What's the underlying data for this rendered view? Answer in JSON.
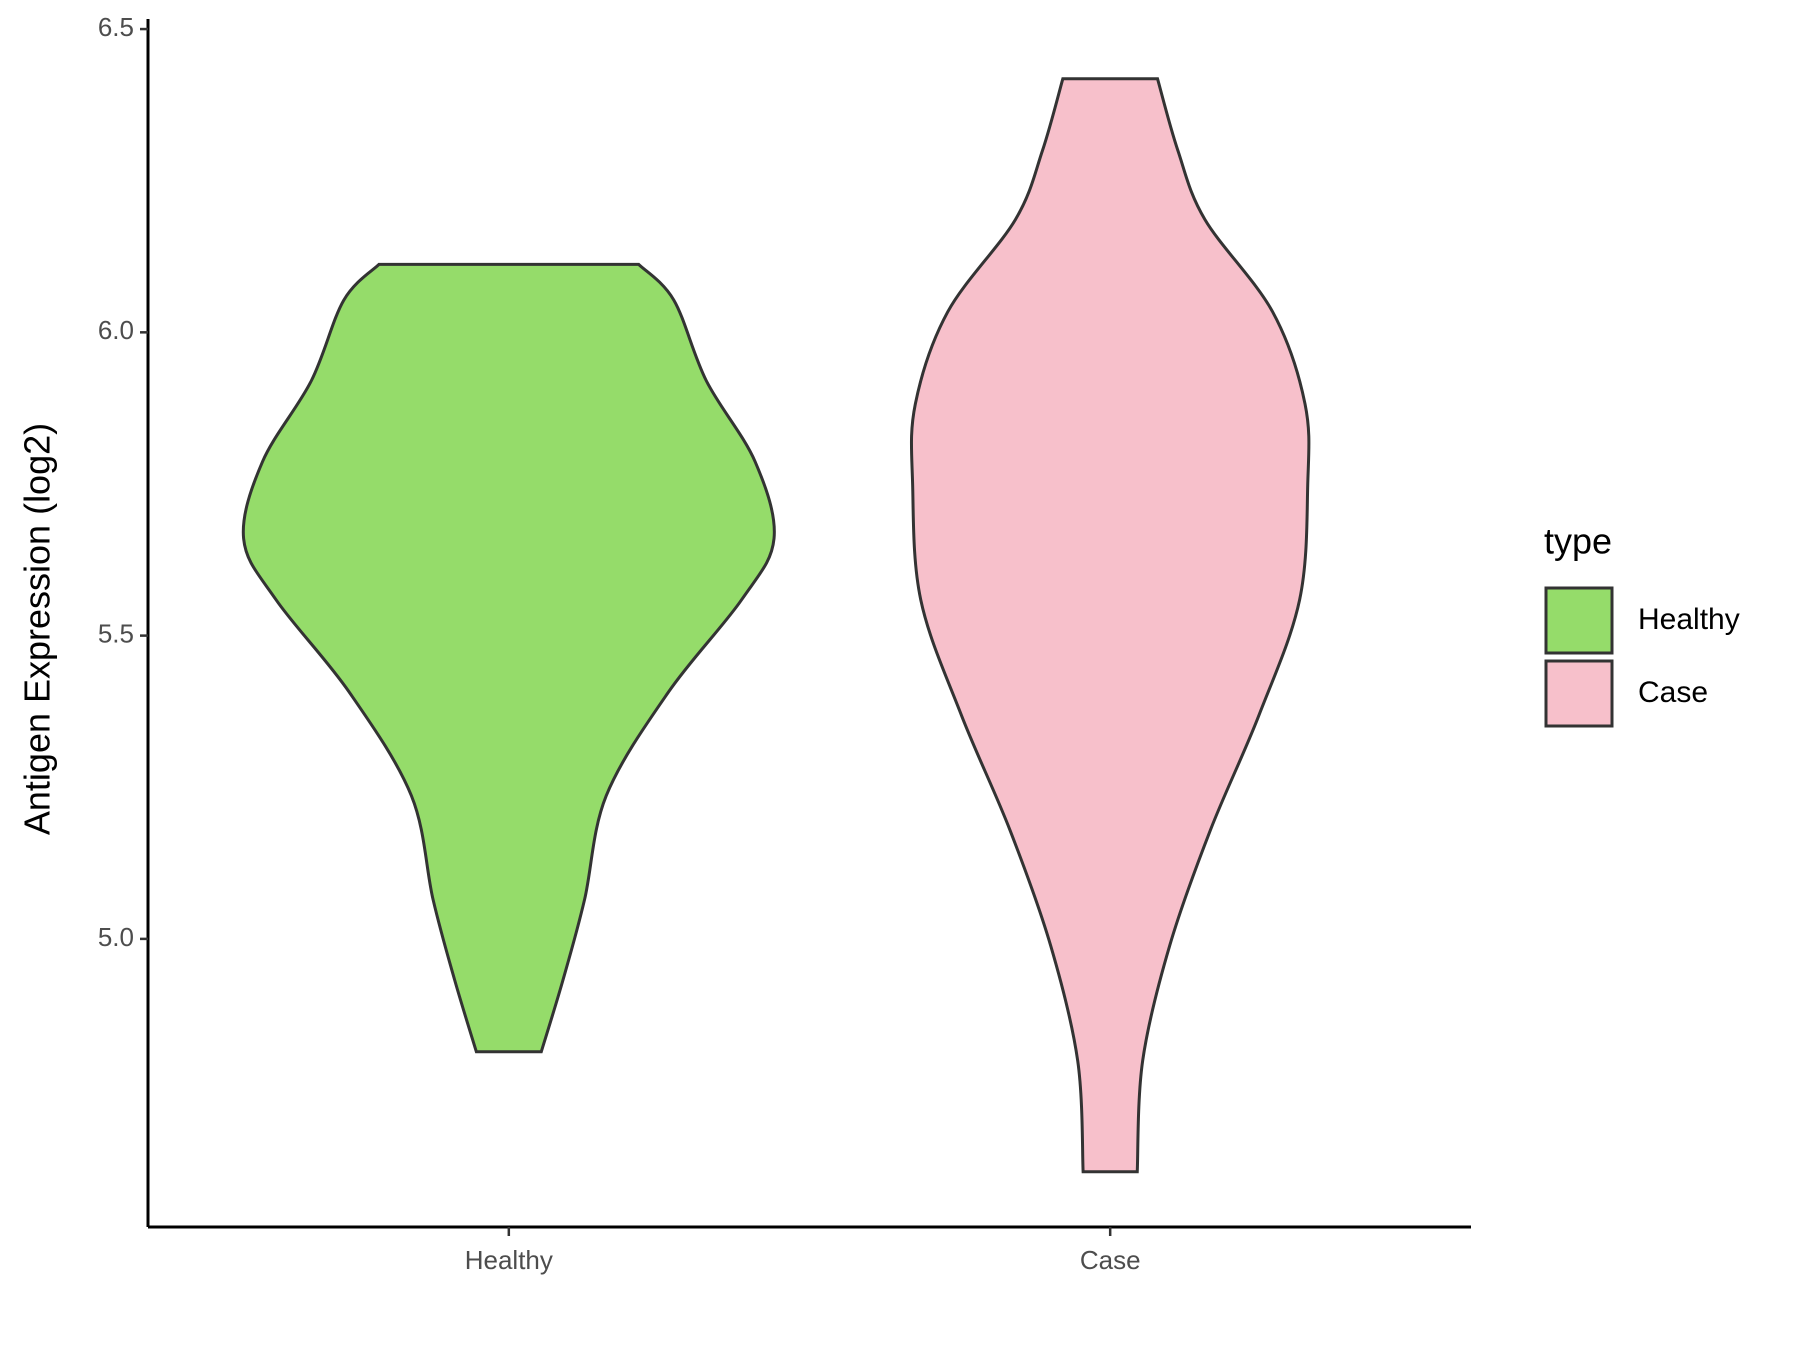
{
  "chart_data": {
    "type": "violin",
    "y_label": "Antigen Expression (log2)",
    "categories": [
      "Healthy",
      "Case"
    ],
    "legend_title": "type",
    "legend_position": "right",
    "ylim": [
      4.525,
      6.51
    ],
    "yticks": [
      {
        "value": 5,
        "label": "5.0"
      },
      5.5,
      {
        "value": 6,
        "label": "6.0"
      },
      6.5
    ],
    "series": [
      {
        "name": "Healthy",
        "color": "#95dc6a",
        "y": [
          6.112,
          6.053,
          5.92,
          5.787,
          5.66,
          5.559,
          5.407,
          5.236,
          5.065,
          4.932,
          4.814
        ],
        "width": [
          0.48,
          0.61,
          0.73,
          0.91,
          0.98,
          0.86,
          0.59,
          0.36,
          0.28,
          0.2,
          0.12
        ]
      },
      {
        "name": "Case",
        "color": "#f7c0cb",
        "y": [
          6.418,
          6.3,
          6.186,
          6.034,
          5.882,
          5.749,
          5.559,
          5.369,
          5.179,
          4.989,
          4.799,
          4.616
        ],
        "width": [
          0.175,
          0.25,
          0.35,
          0.6,
          0.72,
          0.73,
          0.7,
          0.55,
          0.37,
          0.22,
          0.12,
          0.1
        ]
      }
    ]
  }
}
